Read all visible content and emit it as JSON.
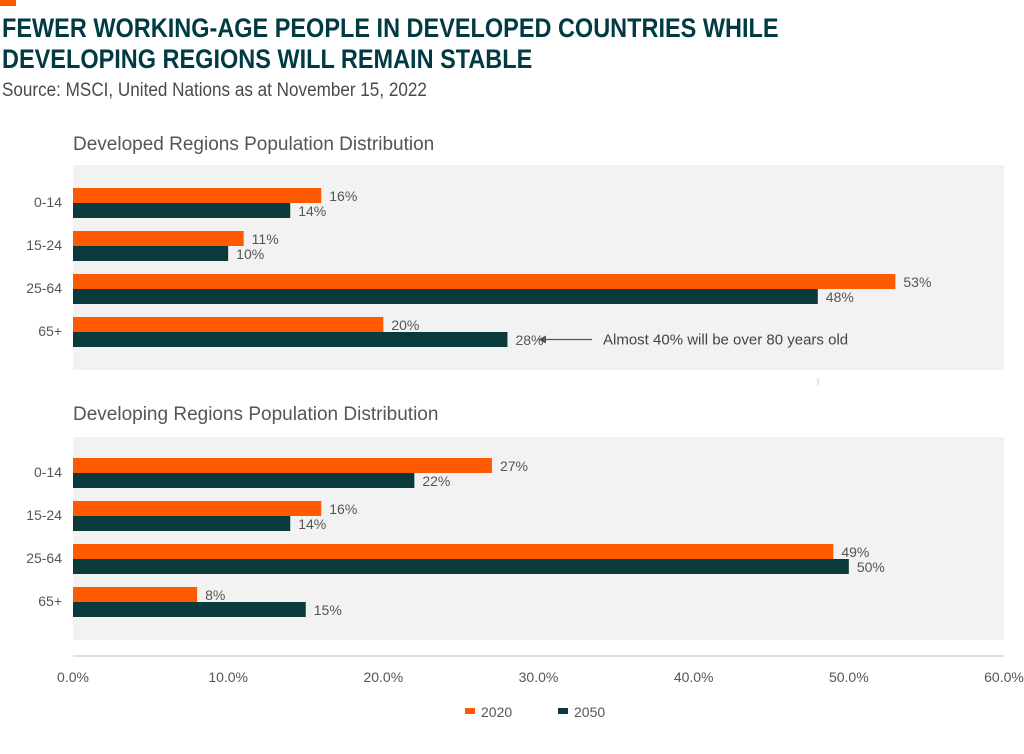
{
  "header": {
    "title_line1": "FEWER WORKING-AGE PEOPLE IN DEVELOPED COUNTRIES WHILE",
    "title_line2": "DEVELOPING REGIONS WILL REMAIN STABLE",
    "source": "Source: MSCI, United Nations as at November 15, 2022"
  },
  "colors": {
    "series_2020": "#ff5a00",
    "series_2050": "#0b3a3c",
    "panel_bg": "#f2f2f2",
    "title": "#003b43"
  },
  "chart_data": [
    {
      "type": "bar",
      "orientation": "horizontal",
      "title": "Developed Regions Population Distribution",
      "categories": [
        "0-14",
        "15-24",
        "25-64",
        "65+"
      ],
      "series": [
        {
          "name": "2020",
          "values": [
            16,
            11,
            53,
            20
          ],
          "labels": [
            "16%",
            "11%",
            "53%",
            "20%"
          ]
        },
        {
          "name": "2050",
          "values": [
            14,
            10,
            48,
            28
          ],
          "labels": [
            "14%",
            "10%",
            "48%",
            "28%"
          ]
        }
      ],
      "annotation": {
        "text": "Almost 40% will be over 80 years old",
        "category": "65+",
        "series": "2050"
      },
      "xlim": [
        0,
        60
      ]
    },
    {
      "type": "bar",
      "orientation": "horizontal",
      "title": "Developing Regions Population Distribution",
      "categories": [
        "0-14",
        "15-24",
        "25-64",
        "65+"
      ],
      "series": [
        {
          "name": "2020",
          "values": [
            27,
            16,
            49,
            8
          ],
          "labels": [
            "27%",
            "16%",
            "49%",
            "8%"
          ]
        },
        {
          "name": "2050",
          "values": [
            22,
            14,
            50,
            15
          ],
          "labels": [
            "22%",
            "14%",
            "50%",
            "15%"
          ]
        }
      ],
      "xlim": [
        0,
        60
      ]
    }
  ],
  "x_axis": {
    "ticks": [
      0,
      10,
      20,
      30,
      40,
      50,
      60
    ],
    "tick_labels": [
      "0.0%",
      "10.0%",
      "20.0%",
      "30.0%",
      "40.0%",
      "50.0%",
      "60.0%"
    ]
  },
  "legend": {
    "items": [
      {
        "name": "2020",
        "color": "#ff5a00"
      },
      {
        "name": "2050",
        "color": "#0b3a3c"
      }
    ]
  }
}
